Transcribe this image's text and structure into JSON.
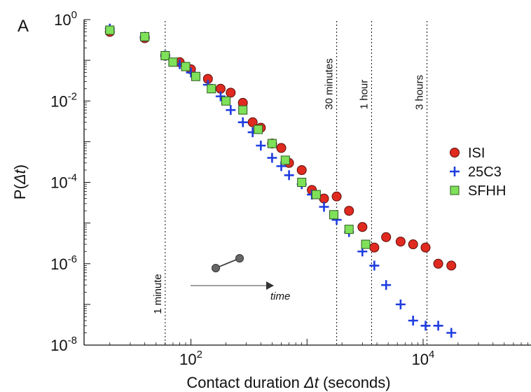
{
  "chart_data": {
    "type": "scatter",
    "panel_label": "A",
    "xlabel": "Contact duration Δt (seconds)",
    "xlabel_parts": {
      "pre": "Contact duration ",
      "var": "Δt",
      "post": " (seconds)"
    },
    "ylabel": "P(Δt)",
    "ylabel_parts": {
      "pre": "P(",
      "var": "Δt",
      "post": ")"
    },
    "x_scale": "log",
    "y_scale": "log",
    "xlim": [
      12,
      85000
    ],
    "ylim": [
      1e-08,
      1
    ],
    "x_ticks": [
      {
        "value": 100,
        "base": "10",
        "exp": "2"
      },
      {
        "value": 10000,
        "base": "10",
        "exp": "4"
      }
    ],
    "y_ticks": [
      {
        "value": 1,
        "base": "10",
        "exp": "0"
      },
      {
        "value": 0.01,
        "base": "10",
        "exp": "-2"
      },
      {
        "value": 0.0001,
        "base": "10",
        "exp": "-4"
      },
      {
        "value": 1e-06,
        "base": "10",
        "exp": "-6"
      },
      {
        "value": 1e-08,
        "base": "10",
        "exp": "-8"
      }
    ],
    "grid": false,
    "legend_position": "right",
    "reference_lines": [
      {
        "x": 60,
        "label": "1 minute"
      },
      {
        "x": 1800,
        "label": "30 minutes"
      },
      {
        "x": 3600,
        "label": "1 hour"
      },
      {
        "x": 10800,
        "label": "3 hours"
      }
    ],
    "inset": {
      "arrow_label": "time"
    },
    "series": [
      {
        "name": "ISI",
        "marker": "circle",
        "color": "#e02a20",
        "x": [
          20,
          40,
          60,
          80,
          100,
          140,
          180,
          220,
          280,
          340,
          400,
          500,
          600,
          700,
          900,
          1100,
          1400,
          1800,
          2300,
          3000,
          3800,
          4800,
          6400,
          8200,
          10500,
          13500,
          17500
        ],
        "y": [
          0.5,
          0.35,
          0.13,
          0.09,
          0.06,
          0.035,
          0.02,
          0.016,
          0.009,
          0.003,
          0.0022,
          0.0009,
          0.0007,
          0.0003,
          0.0002,
          6.5e-05,
          4e-05,
          4.5e-05,
          2e-05,
          8e-06,
          2.5e-06,
          4.5e-06,
          3.5e-06,
          3e-06,
          2.5e-06,
          1e-06,
          9e-07
        ]
      },
      {
        "name": "25C3",
        "marker": "plus",
        "color": "#1f3de0",
        "x": [
          20,
          40,
          60,
          80,
          100,
          140,
          180,
          220,
          280,
          340,
          400,
          500,
          600,
          700,
          900,
          1100,
          1400,
          1800,
          2300,
          3000,
          3800,
          4800,
          6400,
          8200,
          10500,
          13500,
          17500
        ],
        "y": [
          0.6,
          0.38,
          0.13,
          0.08,
          0.05,
          0.025,
          0.013,
          0.006,
          0.003,
          0.0017,
          0.0008,
          0.0004,
          0.00025,
          0.00015,
          9e-05,
          5e-05,
          2.5e-05,
          1.2e-05,
          6e-06,
          2e-06,
          9e-07,
          3e-07,
          1e-07,
          4e-08,
          3e-08,
          3e-08,
          2e-08
        ]
      },
      {
        "name": "SFHH",
        "marker": "square",
        "color": "#7fe05a",
        "x": [
          20,
          40,
          60,
          70,
          90,
          110,
          150,
          200,
          280,
          380,
          500,
          650,
          900,
          1200,
          1700,
          2300,
          3200
        ],
        "y": [
          0.55,
          0.38,
          0.13,
          0.09,
          0.07,
          0.04,
          0.02,
          0.01,
          0.006,
          0.002,
          0.0009,
          0.00035,
          0.0001,
          5e-05,
          1.6e-05,
          7e-06,
          3e-06
        ]
      }
    ]
  }
}
